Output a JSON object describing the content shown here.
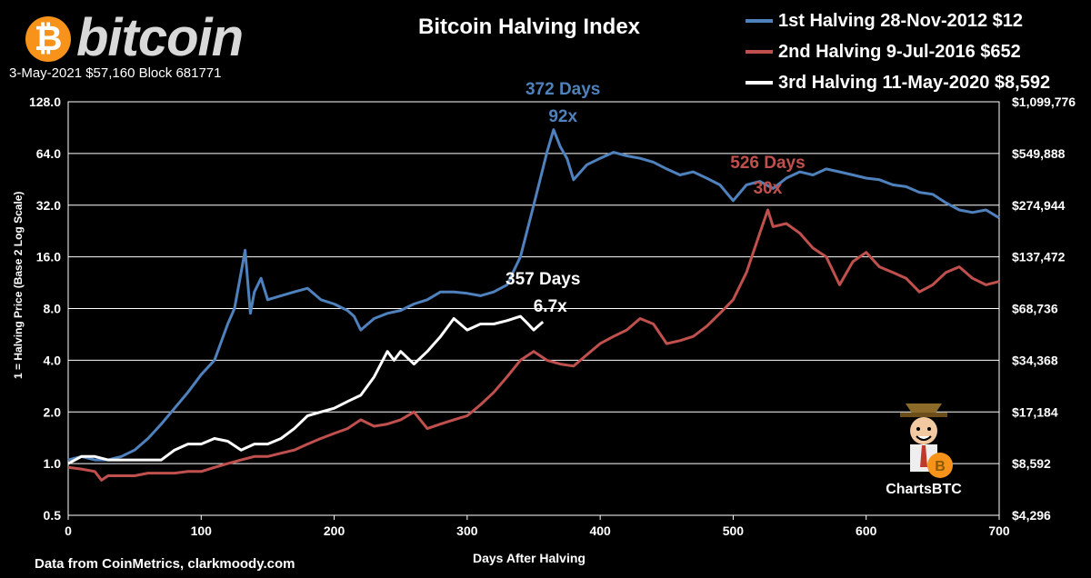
{
  "header": {
    "logo_symbol": "₿",
    "logo_text": "bitcoin",
    "subtitle": "3-May-2021 $57,160  Block 681771",
    "title": "Bitcoin Halving Index"
  },
  "footer": {
    "source": "Data from CoinMetrics, clarkmoody.com"
  },
  "brand": {
    "mascot_label": "ChartsBTC",
    "mascot_icon": "mascot-cartoon-icon"
  },
  "colors": {
    "first": "#4f81bd",
    "second": "#c0504d",
    "third": "#ffffff",
    "bitcoin_orange": "#f7931a"
  },
  "chart_data": {
    "type": "line",
    "title": "Bitcoin Halving Index",
    "xlabel": "Days After Halving",
    "ylabel": "1 = Halving  Price  (Base  2 Log Scale)",
    "log_scale_base": 2,
    "xlim": [
      0,
      700
    ],
    "ylim": [
      0.5,
      128
    ],
    "grid": "horizontal",
    "x_ticks": [
      0,
      100,
      200,
      300,
      400,
      500,
      600,
      700
    ],
    "y_ticks": [
      0.5,
      1,
      2,
      4,
      8,
      16,
      32,
      64,
      128
    ],
    "y_tick_labels": [
      "0.5",
      "1.0",
      "2.0",
      "4.0",
      "8.0",
      "16.0",
      "32.0",
      "64.0",
      "128.0"
    ],
    "y2_tick_labels": [
      "$4,296",
      "$8,592",
      "$17,184",
      "$34,368",
      "$68,736",
      "$137,472",
      "$274,944",
      "$549,888",
      "$1,099,776"
    ],
    "legend_position": "top-right",
    "series": [
      {
        "name": "1st Halving 28-Nov-2012 $12",
        "color": "#4f81bd",
        "x": [
          0,
          10,
          20,
          30,
          40,
          50,
          60,
          70,
          80,
          90,
          100,
          110,
          120,
          125,
          130,
          133,
          137,
          140,
          145,
          150,
          160,
          170,
          180,
          190,
          200,
          210,
          215,
          220,
          230,
          240,
          250,
          260,
          270,
          280,
          290,
          300,
          310,
          320,
          330,
          340,
          350,
          360,
          365,
          370,
          375,
          380,
          390,
          400,
          410,
          420,
          430,
          440,
          450,
          460,
          470,
          480,
          490,
          500,
          510,
          520,
          530,
          540,
          550,
          560,
          570,
          580,
          590,
          600,
          610,
          620,
          630,
          640,
          650,
          660,
          670,
          680,
          690,
          700
        ],
        "y": [
          1.05,
          1.1,
          1.05,
          1.05,
          1.1,
          1.2,
          1.4,
          1.7,
          2.1,
          2.6,
          3.3,
          4.0,
          6.5,
          8.0,
          13.0,
          17.5,
          7.5,
          10.0,
          12.0,
          9.0,
          9.5,
          10.0,
          10.5,
          9.0,
          8.5,
          7.8,
          7.2,
          6.0,
          7.0,
          7.5,
          7.8,
          8.5,
          9.0,
          10.0,
          10.0,
          9.8,
          9.5,
          10.0,
          11.0,
          16.0,
          32.0,
          65.0,
          88.0,
          70.0,
          60.0,
          45.0,
          55.0,
          60.0,
          65.0,
          62.0,
          60.0,
          57.0,
          52.0,
          48.0,
          50.0,
          46.0,
          42.0,
          34.0,
          42.0,
          44.0,
          40.0,
          46.0,
          50.0,
          48.0,
          52.0,
          50.0,
          48.0,
          46.0,
          45.0,
          42.0,
          41.0,
          38.0,
          37.0,
          33.0,
          30.0,
          29.0,
          30.0,
          27.0
        ]
      },
      {
        "name": "2nd Halving 9-Jul-2016 $652",
        "color": "#c0504d",
        "x": [
          0,
          10,
          20,
          25,
          30,
          40,
          50,
          60,
          70,
          80,
          90,
          100,
          110,
          120,
          130,
          140,
          150,
          160,
          170,
          180,
          190,
          200,
          210,
          220,
          230,
          240,
          250,
          260,
          270,
          280,
          290,
          300,
          310,
          320,
          330,
          340,
          350,
          360,
          370,
          380,
          390,
          400,
          410,
          420,
          430,
          440,
          450,
          460,
          470,
          480,
          490,
          500,
          510,
          520,
          526,
          530,
          540,
          550,
          560,
          570,
          580,
          590,
          600,
          610,
          620,
          630,
          640,
          650,
          660,
          670,
          680,
          690,
          700
        ],
        "y": [
          0.95,
          0.93,
          0.9,
          0.8,
          0.85,
          0.85,
          0.85,
          0.88,
          0.88,
          0.88,
          0.9,
          0.9,
          0.95,
          1.0,
          1.05,
          1.1,
          1.1,
          1.15,
          1.2,
          1.3,
          1.4,
          1.5,
          1.6,
          1.8,
          1.65,
          1.7,
          1.8,
          2.0,
          1.6,
          1.7,
          1.8,
          1.9,
          2.2,
          2.6,
          3.2,
          4.0,
          4.5,
          4.0,
          3.8,
          3.7,
          4.3,
          5.0,
          5.5,
          6.0,
          7.0,
          6.5,
          5.0,
          5.2,
          5.5,
          6.3,
          7.5,
          9.0,
          13.0,
          22.0,
          30.0,
          24.0,
          25.0,
          22.0,
          18.0,
          16.0,
          11.0,
          15.0,
          17.0,
          14.0,
          13.0,
          12.0,
          10.0,
          11.0,
          13.0,
          14.0,
          12.0,
          11.0,
          11.5
        ]
      },
      {
        "name": "3rd Halving 11-May-2020 $8,592",
        "color": "#ffffff",
        "x": [
          0,
          10,
          20,
          30,
          40,
          50,
          60,
          70,
          80,
          90,
          100,
          110,
          120,
          130,
          140,
          150,
          160,
          170,
          180,
          190,
          200,
          210,
          220,
          230,
          240,
          245,
          250,
          260,
          270,
          280,
          290,
          300,
          310,
          320,
          330,
          340,
          345,
          350,
          357
        ],
        "y": [
          1.0,
          1.1,
          1.1,
          1.05,
          1.05,
          1.05,
          1.05,
          1.05,
          1.2,
          1.3,
          1.3,
          1.4,
          1.35,
          1.2,
          1.3,
          1.3,
          1.4,
          1.6,
          1.9,
          2.0,
          2.1,
          2.3,
          2.5,
          3.2,
          4.5,
          4.0,
          4.5,
          3.8,
          4.5,
          5.5,
          7.0,
          6.0,
          6.5,
          6.5,
          6.8,
          7.2,
          6.6,
          6.0,
          6.7
        ]
      }
    ],
    "annotations": [
      {
        "label": "372 Days",
        "x": 372,
        "color": "#4f81bd"
      },
      {
        "label": "92x",
        "x": 372,
        "color": "#4f81bd"
      },
      {
        "label": "526 Days",
        "x": 526,
        "color": "#c0504d"
      },
      {
        "label": "30x",
        "x": 526,
        "color": "#c0504d"
      },
      {
        "label": "357  Days",
        "x": 357,
        "color": "#ffffff"
      },
      {
        "label": "6.7x",
        "x": 357,
        "color": "#ffffff"
      }
    ]
  }
}
